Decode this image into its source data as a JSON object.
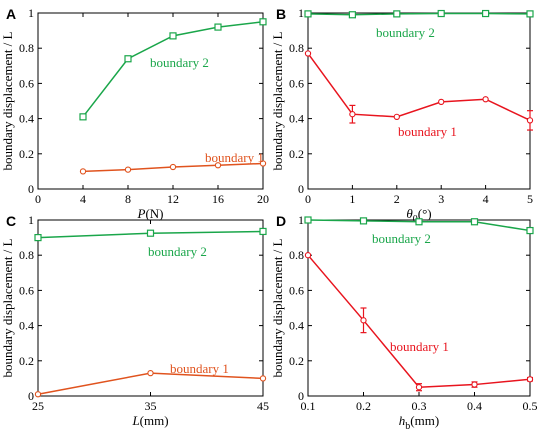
{
  "chart_data": [
    {
      "panel": "A",
      "type": "line",
      "xlabel_var": "P",
      "xlabel_unit": "(N)",
      "ylabel": "boundary displacement / L",
      "xlim": [
        0,
        20
      ],
      "ylim": [
        0,
        1
      ],
      "xticks": [
        "0",
        "4",
        "8",
        "12",
        "16",
        "20"
      ],
      "xtick_values": [
        0,
        4,
        8,
        12,
        16,
        20
      ],
      "yticks": [
        "0",
        "0.2",
        "0.4",
        "0.6",
        "0.8",
        "1"
      ],
      "ytick_values": [
        0,
        0.2,
        0.4,
        0.6,
        0.8,
        1
      ],
      "series": [
        {
          "name": "boundary 2",
          "color": "#1aa64a",
          "marker": "square",
          "x": [
            4,
            8,
            12,
            16,
            20
          ],
          "y": [
            0.41,
            0.74,
            0.87,
            0.92,
            0.95
          ],
          "err": [
            0,
            0,
            0,
            0,
            0
          ]
        },
        {
          "name": "boundary 1",
          "color": "#e0531e",
          "marker": "circle",
          "x": [
            4,
            8,
            12,
            16,
            20
          ],
          "y": [
            0.1,
            0.11,
            0.125,
            0.135,
            0.145
          ],
          "err": [
            0,
            0,
            0,
            0,
            0
          ]
        }
      ]
    },
    {
      "panel": "B",
      "type": "line",
      "xlabel_var": "θ0",
      "xlabel_unit": "(°)",
      "ylabel": "boundary displacement / L",
      "xlim": [
        0,
        5
      ],
      "ylim": [
        0,
        1
      ],
      "xticks": [
        "0",
        "1",
        "2",
        "3",
        "4",
        "5"
      ],
      "xtick_values": [
        0,
        1,
        2,
        3,
        4,
        5
      ],
      "yticks": [
        "0",
        "0.2",
        "0.4",
        "0.6",
        "0.8",
        "1"
      ],
      "ytick_values": [
        0,
        0.2,
        0.4,
        0.6,
        0.8,
        1
      ],
      "series": [
        {
          "name": "boundary 2",
          "color": "#1aa64a",
          "marker": "square",
          "x": [
            0,
            1,
            2,
            3,
            4,
            5
          ],
          "y": [
            0.995,
            0.99,
            0.995,
            0.997,
            0.997,
            0.995
          ],
          "err": [
            0,
            0,
            0,
            0,
            0,
            0
          ]
        },
        {
          "name": "boundary 1",
          "color": "#e8141e",
          "marker": "circle",
          "x": [
            0,
            1,
            2,
            3,
            4,
            5
          ],
          "y": [
            0.77,
            0.425,
            0.41,
            0.495,
            0.51,
            0.39
          ],
          "err": [
            0,
            0.05,
            0,
            0,
            0,
            0.055
          ]
        }
      ]
    },
    {
      "panel": "C",
      "type": "line",
      "xlabel_var": "L",
      "xlabel_unit": "(mm)",
      "ylabel": "boundary displacement / L",
      "xlim": [
        25,
        45
      ],
      "ylim": [
        0,
        1
      ],
      "xticks": [
        "25",
        "35",
        "45"
      ],
      "xtick_values": [
        25,
        35,
        45
      ],
      "yticks": [
        "0",
        "0.2",
        "0.4",
        "0.6",
        "0.8",
        "1"
      ],
      "ytick_values": [
        0,
        0.2,
        0.4,
        0.6,
        0.8,
        1
      ],
      "series": [
        {
          "name": "boundary 2",
          "color": "#1aa64a",
          "marker": "square",
          "x": [
            25,
            35,
            45
          ],
          "y": [
            0.9,
            0.925,
            0.935
          ],
          "err": [
            0,
            0,
            0
          ]
        },
        {
          "name": "boundary 1",
          "color": "#e0531e",
          "marker": "circle",
          "x": [
            25,
            35,
            45
          ],
          "y": [
            0.01,
            0.13,
            0.1
          ],
          "err": [
            0,
            0,
            0
          ]
        }
      ]
    },
    {
      "panel": "D",
      "type": "line",
      "xlabel_var": "hb",
      "xlabel_unit": "(mm)",
      "ylabel": "boundary displacement / L",
      "xlim": [
        0.1,
        0.5
      ],
      "ylim": [
        0,
        1
      ],
      "xticks": [
        "0.1",
        "0.2",
        "0.3",
        "0.4",
        "0.5"
      ],
      "xtick_values": [
        0.1,
        0.2,
        0.3,
        0.4,
        0.5
      ],
      "yticks": [
        "0",
        "0.2",
        "0.4",
        "0.6",
        "0.8",
        "1"
      ],
      "ytick_values": [
        0,
        0.2,
        0.4,
        0.6,
        0.8,
        1
      ],
      "series": [
        {
          "name": "boundary 2",
          "color": "#1aa64a",
          "marker": "square",
          "x": [
            0.1,
            0.2,
            0.3,
            0.4,
            0.5
          ],
          "y": [
            1.0,
            0.995,
            0.99,
            0.99,
            0.94
          ],
          "err": [
            0,
            0,
            0,
            0,
            0
          ]
        },
        {
          "name": "boundary 1",
          "color": "#e8141e",
          "marker": "circle",
          "x": [
            0.1,
            0.2,
            0.3,
            0.4,
            0.5
          ],
          "y": [
            0.8,
            0.43,
            0.05,
            0.065,
            0.095
          ],
          "err": [
            0,
            0.07,
            0.02,
            0.015,
            0.01
          ]
        }
      ]
    }
  ]
}
